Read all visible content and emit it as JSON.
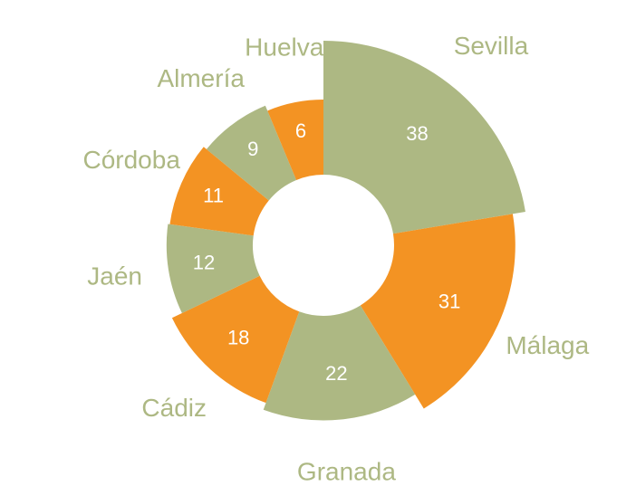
{
  "chart_data": {
    "type": "donut",
    "categories": [
      "Sevilla",
      "Málaga",
      "Granada",
      "Cádiz",
      "Jaén",
      "Córdoba",
      "Almería",
      "Huelva"
    ],
    "values": [
      38,
      31,
      22,
      18,
      12,
      11,
      9,
      6
    ],
    "colors": [
      "#adb883",
      "#f39323",
      "#adb883",
      "#f39323",
      "#adb883",
      "#f39323",
      "#adb883",
      "#f39323"
    ],
    "label_color": "#adb883"
  }
}
